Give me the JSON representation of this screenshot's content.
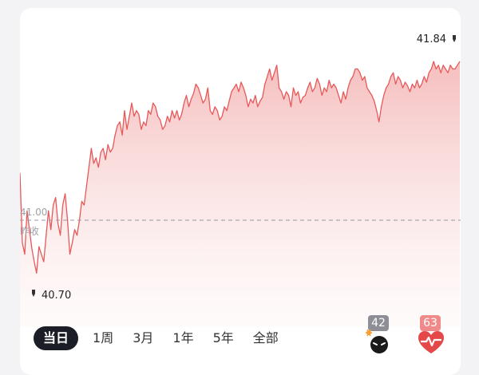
{
  "chart_data": {
    "type": "line",
    "prev_close": 41.0,
    "prev_close_label": "昨收",
    "high": 41.84,
    "low": 40.7,
    "ylim": [
      40.62,
      41.92
    ],
    "series": [
      {
        "values": [
          41.25,
          40.88,
          40.82,
          41.05,
          40.95,
          40.85,
          40.78,
          40.72,
          40.86,
          40.82,
          40.78,
          40.92,
          41.05,
          40.95,
          41.08,
          41.12,
          40.98,
          40.92,
          41.08,
          41.14,
          41.0,
          40.82,
          40.88,
          40.95,
          40.92,
          41.0,
          41.1,
          41.08,
          41.18,
          41.28,
          41.38,
          41.3,
          41.33,
          41.28,
          41.36,
          41.38,
          41.32,
          41.4,
          41.36,
          41.38,
          41.45,
          41.5,
          41.52,
          41.45,
          41.58,
          41.48,
          41.55,
          41.62,
          41.55,
          41.58,
          41.56,
          41.48,
          41.52,
          41.5,
          41.58,
          41.56,
          41.62,
          41.6,
          41.55,
          41.53,
          41.48,
          41.5,
          41.55,
          41.52,
          41.58,
          41.54,
          41.58,
          41.53,
          41.56,
          41.62,
          41.66,
          41.6,
          41.64,
          41.67,
          41.72,
          41.7,
          41.66,
          41.62,
          41.64,
          41.7,
          41.58,
          41.56,
          41.6,
          41.58,
          41.53,
          41.55,
          41.6,
          41.58,
          41.63,
          41.68,
          41.7,
          41.72,
          41.68,
          41.73,
          41.7,
          41.66,
          41.6,
          41.64,
          41.62,
          41.66,
          41.6,
          41.63,
          41.65,
          41.72,
          41.76,
          41.8,
          41.74,
          41.78,
          41.82,
          41.7,
          41.68,
          41.64,
          41.68,
          41.66,
          41.6,
          41.7,
          41.66,
          41.68,
          41.62,
          41.65,
          41.66,
          41.7,
          41.73,
          41.68,
          41.7,
          41.75,
          41.72,
          41.66,
          41.7,
          41.68,
          41.74,
          41.7,
          41.72,
          41.7,
          41.66,
          41.62,
          41.68,
          41.64,
          41.7,
          41.74,
          41.76,
          41.8,
          41.8,
          41.78,
          41.74,
          41.76,
          41.7,
          41.68,
          41.66,
          41.63,
          41.58,
          41.52,
          41.6,
          41.66,
          41.7,
          41.72,
          41.76,
          41.78,
          41.72,
          41.76,
          41.74,
          41.7,
          41.73,
          41.71,
          41.68,
          41.72,
          41.7,
          41.74,
          41.7,
          41.72,
          41.76,
          41.73,
          41.78,
          41.8,
          41.84,
          41.8,
          41.82,
          41.78,
          41.82,
          41.8,
          41.78,
          41.82,
          41.8,
          41.8,
          41.82,
          41.84
        ]
      }
    ]
  },
  "tabs": [
    "当日",
    "1周",
    "3月",
    "1年",
    "5年",
    "全部"
  ],
  "active_tab": 0,
  "badges": {
    "left": "42",
    "right": "63"
  },
  "colors": {
    "line": "#e85858",
    "dash": "#9a9aa2",
    "tab_active_bg": "#1c1e27",
    "badge_left": "#8e8e96",
    "badge_right": "#f08a8a"
  }
}
